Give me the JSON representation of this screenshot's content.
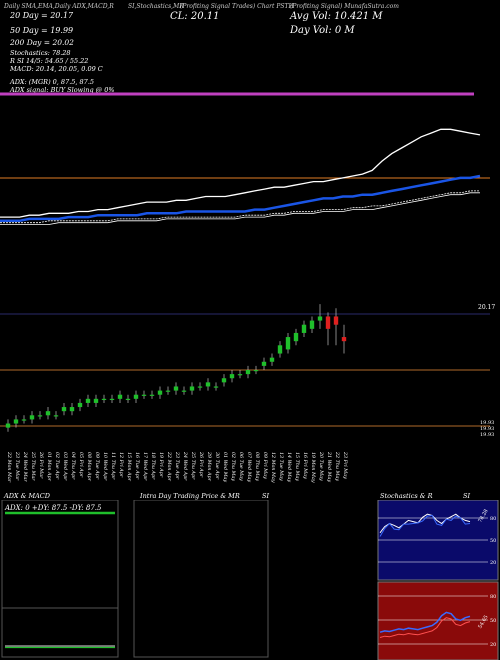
{
  "header": {
    "top_left": "Daily SMA,EMA,Daily ADX,MACD,R",
    "top_mid": "SI,Stochastics,MR",
    "top_right": "(Profiting Signal Trades) Chart PSTH",
    "top_far_right": "(Profiting Signal) MunafaSutra.com",
    "sma20": "20 Day = 20.17",
    "sma50": "50 Day = 19.99",
    "sma200": "200 Day = 20.02",
    "close": "CL: 20.11",
    "avg_vol": "Avg Vol: 10.421 M",
    "day_vol": "Day Vol: 0  M",
    "stochastics": "Stochastics: 78.28",
    "rsi": "R          SI 14/5: 54.65 / 55.22",
    "macd": "MACD: 20.14,  20.05,  0.09 C",
    "adx": "ADX:                    (MGR) 0,  87.5,  87.5",
    "adx_signal": "ADX  signal:                                    BUY Slowing @ 0%"
  },
  "colors": {
    "background": "#000000",
    "ma_blue": "#1a55e6",
    "ma_white": "#ffffff",
    "orange_line": "#e07b24",
    "magenta_line": "#c040c0",
    "candle_up": "#1fbf2b",
    "candle_down": "#e0201f",
    "price_line": "#d0884a"
  },
  "chart_data": [
    {
      "type": "line",
      "name": "moving-averages",
      "x_index": [
        0,
        1,
        2,
        3,
        4,
        5,
        6,
        7,
        8,
        9,
        10,
        11,
        12,
        13,
        14,
        15,
        16,
        17,
        18,
        19,
        20,
        21,
        22,
        23,
        24,
        25,
        26,
        27,
        28,
        29,
        30,
        31,
        32,
        33,
        34,
        35,
        36,
        37,
        38,
        39,
        40,
        41,
        42,
        43,
        44,
        45,
        46,
        47,
        48,
        49
      ],
      "series": [
        {
          "values": [
            19.94,
            19.94,
            19.94,
            19.95,
            19.95,
            19.95,
            19.95,
            19.96,
            19.96,
            19.96,
            19.97,
            19.97,
            19.97,
            19.97,
            19.97,
            19.98,
            19.98,
            19.98,
            19.98,
            19.99,
            19.99,
            19.99,
            19.99,
            19.99,
            19.99,
            19.99,
            20.0,
            20.0,
            20.01,
            20.02,
            20.03,
            20.04,
            20.05,
            20.06,
            20.06,
            20.07,
            20.07,
            20.08,
            20.08,
            20.09,
            20.1,
            20.11,
            20.12,
            20.13,
            20.14,
            20.15,
            20.16,
            20.17,
            20.17,
            20.18
          ]
        },
        {
          "values": [
            19.96,
            19.96,
            19.96,
            19.97,
            19.97,
            19.98,
            19.98,
            19.98,
            19.99,
            19.99,
            20.0,
            20.0,
            20.01,
            20.02,
            20.03,
            20.04,
            20.04,
            20.04,
            20.05,
            20.05,
            20.06,
            20.07,
            20.07,
            20.07,
            20.08,
            20.09,
            20.1,
            20.11,
            20.12,
            20.12,
            20.13,
            20.14,
            20.15,
            20.15,
            20.16,
            20.17,
            20.18,
            20.19,
            20.21,
            20.26,
            20.3,
            20.33,
            20.36,
            20.39,
            20.41,
            20.43,
            20.43,
            20.42,
            20.41,
            20.4
          ]
        },
        {
          "values": [
            19.93,
            19.93,
            19.93,
            19.93,
            19.93,
            19.94,
            19.94,
            19.94,
            19.94,
            19.94,
            19.94,
            19.94,
            19.95,
            19.95,
            19.95,
            19.95,
            19.95,
            19.96,
            19.96,
            19.96,
            19.96,
            19.96,
            19.96,
            19.96,
            19.96,
            19.97,
            19.97,
            19.97,
            19.98,
            19.98,
            19.99,
            19.99,
            19.99,
            20.0,
            20.0,
            20.0,
            20.01,
            20.01,
            20.02,
            20.02,
            20.03,
            20.04,
            20.05,
            20.06,
            20.07,
            20.08,
            20.09,
            20.09,
            20.1,
            20.1
          ]
        },
        {
          "values": [
            19.92,
            19.92,
            19.92,
            19.92,
            19.92,
            19.92,
            19.93,
            19.93,
            19.93,
            19.93,
            19.93,
            19.93,
            19.94,
            19.94,
            19.94,
            19.94,
            19.94,
            19.95,
            19.95,
            19.95,
            19.95,
            19.95,
            19.95,
            19.95,
            19.95,
            19.96,
            19.96,
            19.96,
            19.97,
            19.97,
            19.98,
            19.98,
            19.98,
            19.99,
            19.99,
            19.99,
            20.0,
            20.0,
            20.0,
            20.01,
            20.02,
            20.03,
            20.04,
            20.05,
            20.06,
            20.07,
            20.08,
            20.08,
            20.09,
            20.09
          ]
        }
      ]
    },
    {
      "type": "candlestick",
      "name": "price-candles",
      "x": [
        "22 Mon",
        "23 Tue",
        "24 Wed",
        "25 Thu",
        "26 Fri",
        "01 Mon",
        "02 Tue",
        "03 Wed",
        "04 Thu",
        "05 Fri",
        "08 Mon",
        "09 Tue",
        "10 Wed",
        "11 Thu",
        "12 Fri",
        "15 Mon",
        "16 Tue",
        "17 Wed",
        "18 Thu",
        "19 Fri",
        "22 Mon",
        "23 Tue",
        "24 Wed",
        "25 Thu",
        "26 Fri",
        "29 Mon",
        "30 Tue",
        "01 Wed",
        "02 Thu",
        "06 Tue",
        "07 Wed",
        "08 Thu",
        "09 Fri",
        "12 Mon",
        "13 Tue",
        "14 Wed",
        "15 Thu",
        "16 Fri",
        "19 Mon",
        "20 Tue",
        "21 Wed",
        "22 Thu",
        "23 Fri"
      ],
      "x_month": [
        "Mar",
        "Mar",
        "Mar",
        "Mar",
        "Mar",
        "Apr",
        "Apr",
        "Apr",
        "Apr",
        "Apr",
        "Apr",
        "Apr",
        "Apr",
        "Apr",
        "Apr",
        "Apr",
        "Apr",
        "Apr",
        "Apr",
        "Apr",
        "Apr",
        "Apr",
        "Apr",
        "Apr",
        "Apr",
        "Apr",
        "Apr",
        "May",
        "May",
        "May",
        "May",
        "May",
        "May",
        "May",
        "May",
        "May",
        "May",
        "May",
        "May",
        "May",
        "May",
        "May",
        "May"
      ],
      "open": [
        19.9,
        19.91,
        19.92,
        19.92,
        19.93,
        19.93,
        19.93,
        19.94,
        19.94,
        19.95,
        19.96,
        19.96,
        19.97,
        19.97,
        19.97,
        19.97,
        19.97,
        19.98,
        19.98,
        19.98,
        19.99,
        19.99,
        19.99,
        19.99,
        20.0,
        20.0,
        20.0,
        20.01,
        20.02,
        20.03,
        20.03,
        20.04,
        20.05,
        20.06,
        20.08,
        20.09,
        20.11,
        20.13,
        20.14,
        20.16,
        20.17,
        20.17,
        20.12
      ],
      "close": [
        19.91,
        19.92,
        19.92,
        19.93,
        19.93,
        19.94,
        19.93,
        19.95,
        19.95,
        19.96,
        19.97,
        19.97,
        19.97,
        19.97,
        19.98,
        19.97,
        19.98,
        19.98,
        19.98,
        19.99,
        19.99,
        20.0,
        19.99,
        20.0,
        20.0,
        20.01,
        20.0,
        20.02,
        20.03,
        20.03,
        20.04,
        20.04,
        20.06,
        20.07,
        20.1,
        20.12,
        20.13,
        20.15,
        20.16,
        20.17,
        20.14,
        20.15,
        20.11
      ],
      "high": [
        19.92,
        19.93,
        19.93,
        19.94,
        19.94,
        19.95,
        19.94,
        19.96,
        19.96,
        19.97,
        19.98,
        19.98,
        19.98,
        19.98,
        19.99,
        19.98,
        19.99,
        19.99,
        19.99,
        20.0,
        20.0,
        20.01,
        20.0,
        20.01,
        20.01,
        20.02,
        20.01,
        20.03,
        20.04,
        20.04,
        20.05,
        20.05,
        20.07,
        20.08,
        20.11,
        20.13,
        20.14,
        20.16,
        20.17,
        20.2,
        20.18,
        20.19,
        20.15
      ],
      "low": [
        19.89,
        19.9,
        19.91,
        19.91,
        19.92,
        19.92,
        19.92,
        19.93,
        19.93,
        19.94,
        19.95,
        19.95,
        19.96,
        19.96,
        19.96,
        19.96,
        19.96,
        19.97,
        19.97,
        19.97,
        19.98,
        19.98,
        19.98,
        19.98,
        19.99,
        19.99,
        19.99,
        20.0,
        20.01,
        20.02,
        20.02,
        20.03,
        20.04,
        20.05,
        20.07,
        20.08,
        20.1,
        20.12,
        20.13,
        20.14,
        20.1,
        20.1,
        20.08
      ],
      "right_labels": [
        "20.17",
        "19.93",
        "19.93",
        "19.93"
      ],
      "orange_levels": [
        20.0,
        19.93
      ]
    },
    {
      "type": "bar",
      "name": "adx-macd",
      "title": "ADX  & MACD",
      "label": "ADX: 0  +DY: 87.5  -DY: 87.5"
    },
    {
      "type": "line",
      "name": "intraday",
      "title": "Intra  Day Trading Price  & MR",
      "title_right": "SI"
    },
    {
      "type": "line",
      "name": "stochastics",
      "title": "Stochastics & R",
      "title_right": "SI",
      "levels": [
        "80",
        "50",
        "20"
      ],
      "values": [
        60,
        70,
        75,
        72,
        68,
        74,
        80,
        78,
        76,
        85,
        90,
        88,
        80,
        75,
        82,
        86,
        90,
        84,
        80,
        78
      ],
      "value_label": "78.28"
    },
    {
      "type": "line",
      "name": "rsi",
      "levels": [
        "80",
        "50",
        "20"
      ],
      "values": [
        30,
        32,
        31,
        33,
        35,
        34,
        36,
        35,
        34,
        36,
        38,
        40,
        45,
        55,
        60,
        58,
        50,
        48,
        52,
        54
      ],
      "value_label": "54.65"
    }
  ]
}
